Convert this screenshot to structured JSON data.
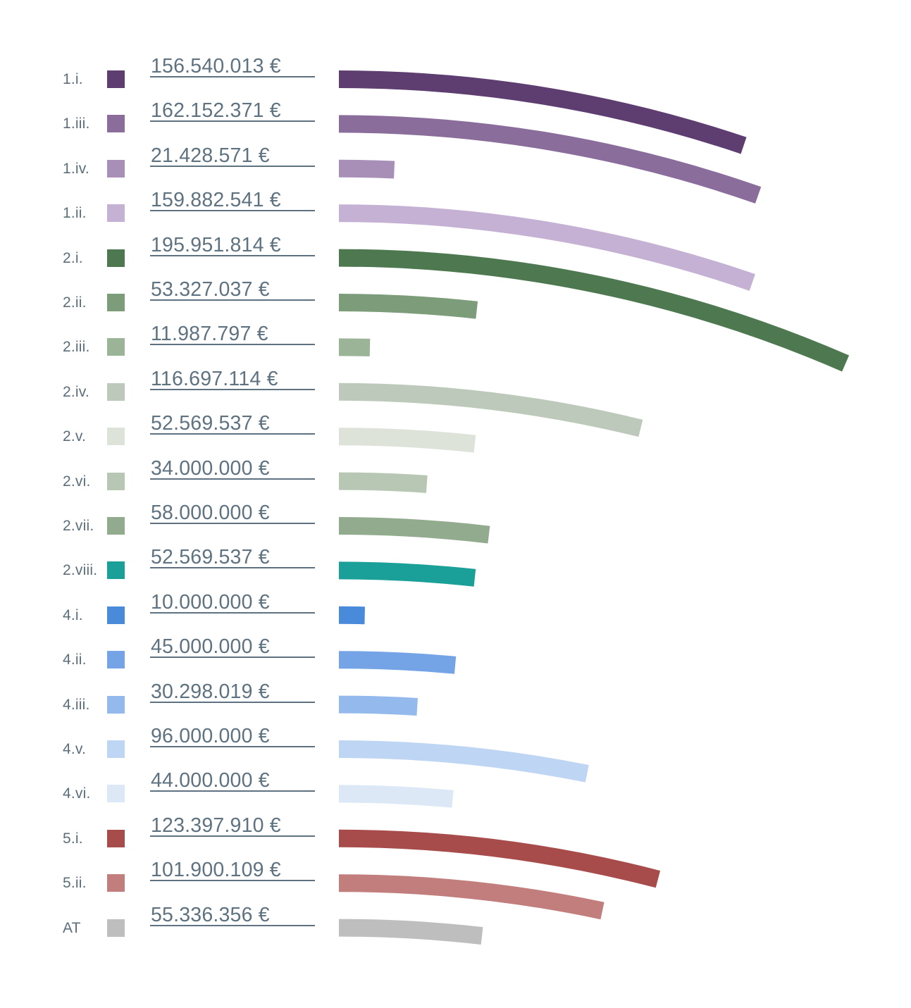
{
  "chart_data": {
    "type": "bar",
    "variant": "curved-horizontal-arc-bars",
    "title": "",
    "xlabel": "",
    "ylabel": "",
    "currency": "EUR",
    "grid": false,
    "legend_position": "left",
    "xlim": [
      0,
      196000000
    ],
    "categories": [
      "1.i.",
      "1.iii.",
      "1.iv.",
      "1.ii.",
      "2.i.",
      "2.ii.",
      "2.iii.",
      "2.iv.",
      "2.v.",
      "2.vi.",
      "2.vii.",
      "2.viii.",
      "4.i.",
      "4.ii.",
      "4.iii.",
      "4.v.",
      "4.vi.",
      "5.i.",
      "5.ii.",
      "AT"
    ],
    "values": [
      156540013,
      162152371,
      21428571,
      159882541,
      195951814,
      53327037,
      11987797,
      116697114,
      52569537,
      34000000,
      58000000,
      52569537,
      10000000,
      45000000,
      30298019,
      96000000,
      44000000,
      123397910,
      101900109,
      55336356
    ],
    "value_labels": [
      "156.540.013 €",
      "162.152.371 €",
      "21.428.571 €",
      "159.882.541 €",
      "195.951.814 €",
      "53.327.037 €",
      "11.987.797 €",
      "116.697.114 €",
      "52.569.537 €",
      "34.000.000 €",
      "58.000.000 €",
      "52.569.537 €",
      "10.000.000 €",
      "45.000.000 €",
      "30.298.019 €",
      "96.000.000 €",
      "44.000.000 €",
      "123.397.910 €",
      "101.900.109 €",
      "55.336.356 €"
    ],
    "colors": [
      "#5E3D71",
      "#8A6D9B",
      "#A88FB7",
      "#C5B1D3",
      "#4E7950",
      "#7C9C7A",
      "#9BB498",
      "#BDC9BA",
      "#DDE3D9",
      "#B8C6B4",
      "#92AB8E",
      "#1BA099",
      "#4A8ADB",
      "#74A3E6",
      "#94B9EC",
      "#BED5F3",
      "#DCE8F6",
      "#A84C4B",
      "#C17E7D",
      "#BEBEBE"
    ]
  },
  "styles": {
    "background": "#FFFFFF",
    "category_text_color": "#5C6E7A",
    "value_text_color": "#5E7280",
    "underline_color": "#5E7180"
  }
}
